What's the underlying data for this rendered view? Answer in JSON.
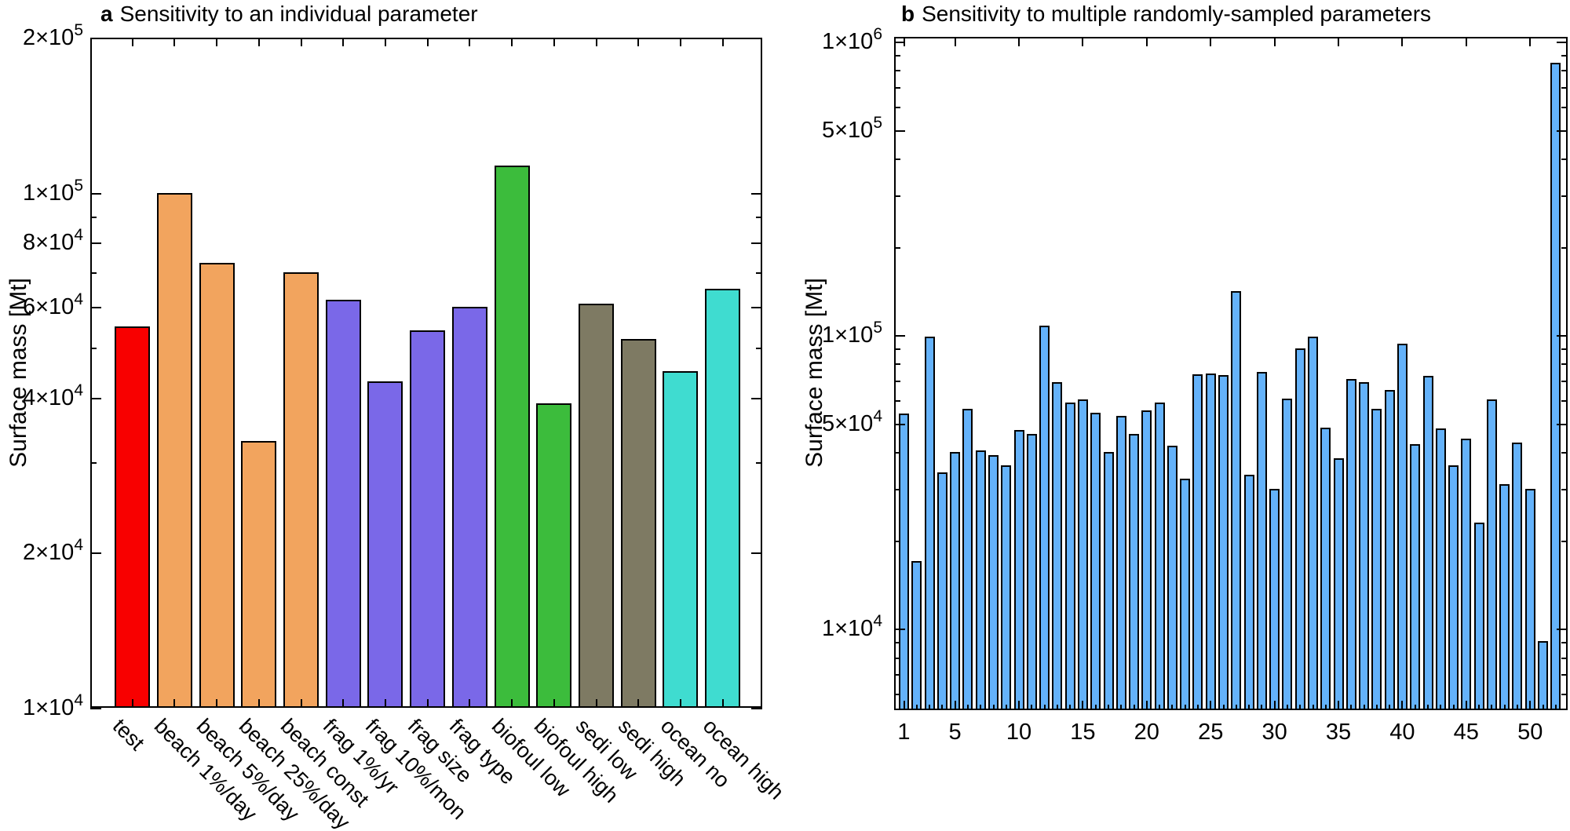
{
  "page": {
    "background": "#ffffff",
    "text_color": "#000000",
    "axis_color": "#000000"
  },
  "chart_data": [
    {
      "type": "bar",
      "panel": "a",
      "title_letter": "a",
      "title_text": "Sensitivity to an individual parameter",
      "ylabel": "Surface mass [Mt]",
      "yscale": "log",
      "ylim": [
        10000,
        200000
      ],
      "grid": false,
      "legend": false,
      "categories": [
        "test",
        "beach 1%/day",
        "beach 5%/day",
        "beach 25%/day",
        "beach const",
        "frag 1%/yr",
        "frag 10%/mon",
        "frag size",
        "frag type",
        "biofoul low",
        "biofoul high",
        "sedi low",
        "sedi high",
        "ocean no",
        "ocean high"
      ],
      "values": [
        55000,
        100000,
        73000,
        33000,
        70000,
        62000,
        43000,
        54000,
        60000,
        113000,
        39000,
        61000,
        52000,
        45000,
        65000
      ],
      "bar_colors": [
        "#f80000",
        "#f2a45e",
        "#f2a45e",
        "#f2a45e",
        "#f2a45e",
        "#7a68e8",
        "#7a68e8",
        "#7a68e8",
        "#7a68e8",
        "#3cbc3c",
        "#3cbc3c",
        "#7e7a63",
        "#7e7a63",
        "#3fdcd0",
        "#3fdcd0"
      ],
      "edge_color": "#000000",
      "ytick_major": [
        {
          "label": "2×10^5",
          "value": 200000
        },
        {
          "label": "1×10^5",
          "value": 100000
        },
        {
          "label": "8×10^4",
          "value": 80000
        },
        {
          "label": "6×10^4",
          "value": 60000
        },
        {
          "label": "4×10^4",
          "value": 40000
        },
        {
          "label": "2×10^4",
          "value": 20000
        },
        {
          "label": "1×10^4",
          "value": 10000
        }
      ],
      "ytick_minor_values": [
        90000,
        70000,
        50000,
        30000
      ]
    },
    {
      "type": "bar",
      "panel": "b",
      "title_letter": "b",
      "title_text": "Sensitivity to multiple randomly-sampled parameters",
      "ylabel": "Surface mass [Mt]",
      "yscale": "log",
      "ylim": [
        5280,
        1038000
      ],
      "grid": false,
      "legend": false,
      "x_range": [
        1,
        52
      ],
      "values": [
        54000,
        17000,
        99000,
        34000,
        40000,
        56000,
        40500,
        39000,
        36000,
        47500,
        46000,
        108000,
        69000,
        59000,
        60500,
        54500,
        40000,
        53000,
        46000,
        55500,
        59000,
        42000,
        32500,
        73500,
        74000,
        73000,
        141000,
        33500,
        75000,
        30000,
        61000,
        90000,
        99000,
        48500,
        38000,
        71000,
        69000,
        56000,
        65000,
        93500,
        42500,
        72500,
        48000,
        36000,
        44500,
        23000,
        60500,
        31000,
        43000,
        30000,
        9100,
        850000
      ],
      "bar_color": "#64b2fa",
      "edge_color": "#000000",
      "xtick_labels": [
        {
          "label": "1",
          "index": 1
        },
        {
          "label": "5",
          "index": 5
        },
        {
          "label": "10",
          "index": 10
        },
        {
          "label": "15",
          "index": 15
        },
        {
          "label": "20",
          "index": 20
        },
        {
          "label": "25",
          "index": 25
        },
        {
          "label": "30",
          "index": 30
        },
        {
          "label": "35",
          "index": 35
        },
        {
          "label": "40",
          "index": 40
        },
        {
          "label": "45",
          "index": 45
        },
        {
          "label": "50",
          "index": 50
        }
      ],
      "ytick_major": [
        {
          "label": "1×10^6",
          "value": 1000000
        },
        {
          "label": "5×10^5",
          "value": 500000
        },
        {
          "label": "1×10^5",
          "value": 100000
        },
        {
          "label": "5×10^4",
          "value": 50000
        },
        {
          "label": "1×10^4",
          "value": 10000
        }
      ],
      "ytick_minor_values": [
        900000,
        800000,
        700000,
        600000,
        400000,
        300000,
        200000,
        90000,
        80000,
        70000,
        60000,
        40000,
        30000,
        20000,
        9000,
        8000,
        7000,
        6000
      ]
    }
  ]
}
